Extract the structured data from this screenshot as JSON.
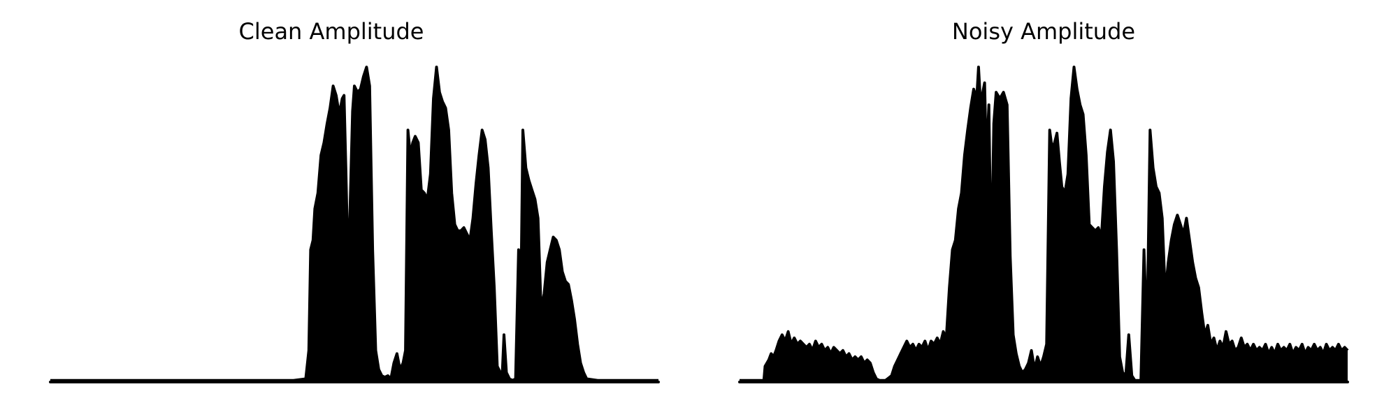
{
  "figure": {
    "background": "#ffffff",
    "mark_color": "#000000"
  },
  "chart_data": [
    {
      "type": "area",
      "title": "Clean Amplitude",
      "xlabel": "",
      "ylabel": "",
      "axes_visible": false,
      "grid": false,
      "xlim": [
        0,
        1
      ],
      "ylim": [
        0,
        1
      ],
      "envelope": [
        [
          0.0,
          0.005
        ],
        [
          0.1,
          0.005
        ],
        [
          0.2,
          0.005
        ],
        [
          0.3,
          0.005
        ],
        [
          0.4,
          0.005
        ],
        [
          0.42,
          0.01
        ],
        [
          0.425,
          0.1
        ],
        [
          0.428,
          0.42
        ],
        [
          0.432,
          0.45
        ],
        [
          0.435,
          0.55
        ],
        [
          0.44,
          0.6
        ],
        [
          0.445,
          0.72
        ],
        [
          0.45,
          0.76
        ],
        [
          0.455,
          0.82
        ],
        [
          0.46,
          0.87
        ],
        [
          0.465,
          0.94
        ],
        [
          0.47,
          0.91
        ],
        [
          0.475,
          0.85
        ],
        [
          0.48,
          0.9
        ],
        [
          0.483,
          0.91
        ],
        [
          0.486,
          0.68
        ],
        [
          0.49,
          0.33
        ],
        [
          0.493,
          0.56
        ],
        [
          0.497,
          0.86
        ],
        [
          0.5,
          0.94
        ],
        [
          0.505,
          0.92
        ],
        [
          0.51,
          0.93
        ],
        [
          0.515,
          0.97
        ],
        [
          0.52,
          1.0
        ],
        [
          0.525,
          0.94
        ],
        [
          0.53,
          0.42
        ],
        [
          0.535,
          0.1
        ],
        [
          0.54,
          0.04
        ],
        [
          0.545,
          0.02
        ],
        [
          0.55,
          0.015
        ],
        [
          0.555,
          0.02
        ],
        [
          0.56,
          0.01
        ],
        [
          0.565,
          0.06
        ],
        [
          0.57,
          0.09
        ],
        [
          0.575,
          0.04
        ],
        [
          0.58,
          0.06
        ],
        [
          0.584,
          0.1
        ],
        [
          0.588,
          0.8
        ],
        [
          0.592,
          0.72
        ],
        [
          0.596,
          0.76
        ],
        [
          0.6,
          0.78
        ],
        [
          0.605,
          0.76
        ],
        [
          0.61,
          0.61
        ],
        [
          0.615,
          0.6
        ],
        [
          0.62,
          0.58
        ],
        [
          0.625,
          0.66
        ],
        [
          0.63,
          0.9
        ],
        [
          0.635,
          1.0
        ],
        [
          0.64,
          0.92
        ],
        [
          0.645,
          0.89
        ],
        [
          0.65,
          0.87
        ],
        [
          0.655,
          0.8
        ],
        [
          0.66,
          0.6
        ],
        [
          0.665,
          0.5
        ],
        [
          0.67,
          0.48
        ],
        [
          0.675,
          0.48
        ],
        [
          0.68,
          0.49
        ],
        [
          0.685,
          0.47
        ],
        [
          0.69,
          0.45
        ],
        [
          0.695,
          0.52
        ],
        [
          0.7,
          0.63
        ],
        [
          0.705,
          0.72
        ],
        [
          0.71,
          0.8
        ],
        [
          0.715,
          0.77
        ],
        [
          0.72,
          0.68
        ],
        [
          0.725,
          0.48
        ],
        [
          0.73,
          0.3
        ],
        [
          0.735,
          0.05
        ],
        [
          0.74,
          0.03
        ],
        [
          0.743,
          0.02
        ],
        [
          0.746,
          0.15
        ],
        [
          0.75,
          0.03
        ],
        [
          0.755,
          0.01
        ],
        [
          0.76,
          0.005
        ],
        [
          0.765,
          0.01
        ],
        [
          0.77,
          0.42
        ],
        [
          0.773,
          0.14
        ],
        [
          0.777,
          0.8
        ],
        [
          0.782,
          0.68
        ],
        [
          0.787,
          0.64
        ],
        [
          0.792,
          0.61
        ],
        [
          0.797,
          0.58
        ],
        [
          0.802,
          0.52
        ],
        [
          0.807,
          0.23
        ],
        [
          0.812,
          0.28
        ],
        [
          0.817,
          0.38
        ],
        [
          0.822,
          0.42
        ],
        [
          0.827,
          0.46
        ],
        [
          0.832,
          0.45
        ],
        [
          0.837,
          0.42
        ],
        [
          0.842,
          0.35
        ],
        [
          0.847,
          0.32
        ],
        [
          0.852,
          0.31
        ],
        [
          0.857,
          0.26
        ],
        [
          0.862,
          0.2
        ],
        [
          0.867,
          0.12
        ],
        [
          0.872,
          0.06
        ],
        [
          0.877,
          0.03
        ],
        [
          0.882,
          0.01
        ],
        [
          0.9,
          0.005
        ],
        [
          0.95,
          0.005
        ],
        [
          1.0,
          0.005
        ]
      ]
    },
    {
      "type": "area",
      "title": "Noisy Amplitude",
      "xlabel": "",
      "ylabel": "",
      "axes_visible": false,
      "grid": false,
      "xlim": [
        0,
        1
      ],
      "ylim": [
        0,
        1
      ],
      "envelope": [
        [
          0.0,
          0.005
        ],
        [
          0.04,
          0.005
        ],
        [
          0.042,
          0.05
        ],
        [
          0.048,
          0.07
        ],
        [
          0.052,
          0.09
        ],
        [
          0.056,
          0.08
        ],
        [
          0.06,
          0.1
        ],
        [
          0.065,
          0.13
        ],
        [
          0.07,
          0.15
        ],
        [
          0.075,
          0.13
        ],
        [
          0.08,
          0.16
        ],
        [
          0.085,
          0.12
        ],
        [
          0.09,
          0.14
        ],
        [
          0.095,
          0.12
        ],
        [
          0.1,
          0.13
        ],
        [
          0.105,
          0.12
        ],
        [
          0.11,
          0.11
        ],
        [
          0.115,
          0.12
        ],
        [
          0.12,
          0.1
        ],
        [
          0.125,
          0.13
        ],
        [
          0.13,
          0.11
        ],
        [
          0.135,
          0.12
        ],
        [
          0.14,
          0.1
        ],
        [
          0.145,
          0.11
        ],
        [
          0.15,
          0.09
        ],
        [
          0.155,
          0.11
        ],
        [
          0.16,
          0.1
        ],
        [
          0.165,
          0.09
        ],
        [
          0.17,
          0.1
        ],
        [
          0.175,
          0.08
        ],
        [
          0.18,
          0.09
        ],
        [
          0.185,
          0.07
        ],
        [
          0.19,
          0.08
        ],
        [
          0.195,
          0.07
        ],
        [
          0.2,
          0.08
        ],
        [
          0.205,
          0.06
        ],
        [
          0.21,
          0.07
        ],
        [
          0.215,
          0.06
        ],
        [
          0.22,
          0.03
        ],
        [
          0.225,
          0.01
        ],
        [
          0.23,
          0.005
        ],
        [
          0.24,
          0.005
        ],
        [
          0.25,
          0.02
        ],
        [
          0.255,
          0.05
        ],
        [
          0.26,
          0.07
        ],
        [
          0.265,
          0.09
        ],
        [
          0.27,
          0.11
        ],
        [
          0.275,
          0.13
        ],
        [
          0.28,
          0.11
        ],
        [
          0.285,
          0.12
        ],
        [
          0.29,
          0.1
        ],
        [
          0.295,
          0.12
        ],
        [
          0.3,
          0.11
        ],
        [
          0.305,
          0.13
        ],
        [
          0.31,
          0.1
        ],
        [
          0.315,
          0.13
        ],
        [
          0.32,
          0.12
        ],
        [
          0.325,
          0.14
        ],
        [
          0.33,
          0.12
        ],
        [
          0.335,
          0.16
        ],
        [
          0.34,
          0.14
        ],
        [
          0.345,
          0.3
        ],
        [
          0.35,
          0.42
        ],
        [
          0.355,
          0.45
        ],
        [
          0.36,
          0.55
        ],
        [
          0.365,
          0.6
        ],
        [
          0.37,
          0.72
        ],
        [
          0.375,
          0.8
        ],
        [
          0.38,
          0.87
        ],
        [
          0.385,
          0.93
        ],
        [
          0.39,
          0.9
        ],
        [
          0.393,
          1.0
        ],
        [
          0.397,
          0.86
        ],
        [
          0.4,
          0.92
        ],
        [
          0.403,
          0.95
        ],
        [
          0.406,
          0.7
        ],
        [
          0.41,
          0.88
        ],
        [
          0.414,
          0.34
        ],
        [
          0.418,
          0.82
        ],
        [
          0.422,
          0.92
        ],
        [
          0.428,
          0.9
        ],
        [
          0.434,
          0.92
        ],
        [
          0.44,
          0.88
        ],
        [
          0.445,
          0.4
        ],
        [
          0.45,
          0.15
        ],
        [
          0.455,
          0.09
        ],
        [
          0.46,
          0.05
        ],
        [
          0.465,
          0.03
        ],
        [
          0.47,
          0.04
        ],
        [
          0.475,
          0.06
        ],
        [
          0.48,
          0.1
        ],
        [
          0.485,
          0.04
        ],
        [
          0.49,
          0.08
        ],
        [
          0.495,
          0.05
        ],
        [
          0.5,
          0.08
        ],
        [
          0.505,
          0.12
        ],
        [
          0.51,
          0.8
        ],
        [
          0.514,
          0.74
        ],
        [
          0.518,
          0.76
        ],
        [
          0.522,
          0.79
        ],
        [
          0.526,
          0.7
        ],
        [
          0.53,
          0.62
        ],
        [
          0.535,
          0.6
        ],
        [
          0.54,
          0.66
        ],
        [
          0.545,
          0.9
        ],
        [
          0.55,
          1.0
        ],
        [
          0.555,
          0.93
        ],
        [
          0.56,
          0.88
        ],
        [
          0.565,
          0.85
        ],
        [
          0.57,
          0.72
        ],
        [
          0.575,
          0.5
        ],
        [
          0.58,
          0.49
        ],
        [
          0.585,
          0.48
        ],
        [
          0.59,
          0.49
        ],
        [
          0.595,
          0.46
        ],
        [
          0.6,
          0.62
        ],
        [
          0.605,
          0.73
        ],
        [
          0.61,
          0.8
        ],
        [
          0.615,
          0.7
        ],
        [
          0.62,
          0.42
        ],
        [
          0.625,
          0.08
        ],
        [
          0.63,
          0.03
        ],
        [
          0.635,
          0.02
        ],
        [
          0.64,
          0.15
        ],
        [
          0.645,
          0.02
        ],
        [
          0.65,
          0.005
        ],
        [
          0.66,
          0.005
        ],
        [
          0.665,
          0.42
        ],
        [
          0.67,
          0.14
        ],
        [
          0.675,
          0.8
        ],
        [
          0.68,
          0.68
        ],
        [
          0.685,
          0.62
        ],
        [
          0.69,
          0.6
        ],
        [
          0.695,
          0.52
        ],
        [
          0.7,
          0.28
        ],
        [
          0.705,
          0.38
        ],
        [
          0.71,
          0.45
        ],
        [
          0.715,
          0.5
        ],
        [
          0.72,
          0.53
        ],
        [
          0.725,
          0.5
        ],
        [
          0.73,
          0.47
        ],
        [
          0.735,
          0.52
        ],
        [
          0.74,
          0.45
        ],
        [
          0.745,
          0.38
        ],
        [
          0.75,
          0.33
        ],
        [
          0.755,
          0.3
        ],
        [
          0.76,
          0.22
        ],
        [
          0.765,
          0.15
        ],
        [
          0.77,
          0.18
        ],
        [
          0.775,
          0.12
        ],
        [
          0.78,
          0.14
        ],
        [
          0.785,
          0.1
        ],
        [
          0.79,
          0.13
        ],
        [
          0.795,
          0.11
        ],
        [
          0.8,
          0.16
        ],
        [
          0.805,
          0.12
        ],
        [
          0.81,
          0.13
        ],
        [
          0.815,
          0.1
        ],
        [
          0.82,
          0.11
        ],
        [
          0.825,
          0.14
        ],
        [
          0.83,
          0.11
        ],
        [
          0.835,
          0.12
        ],
        [
          0.84,
          0.1
        ],
        [
          0.845,
          0.12
        ],
        [
          0.85,
          0.1
        ],
        [
          0.855,
          0.11
        ],
        [
          0.86,
          0.1
        ],
        [
          0.865,
          0.12
        ],
        [
          0.87,
          0.09
        ],
        [
          0.875,
          0.11
        ],
        [
          0.88,
          0.09
        ],
        [
          0.885,
          0.12
        ],
        [
          0.89,
          0.1
        ],
        [
          0.895,
          0.11
        ],
        [
          0.9,
          0.1
        ],
        [
          0.905,
          0.12
        ],
        [
          0.91,
          0.09
        ],
        [
          0.915,
          0.11
        ],
        [
          0.92,
          0.1
        ],
        [
          0.925,
          0.12
        ],
        [
          0.93,
          0.09
        ],
        [
          0.935,
          0.11
        ],
        [
          0.94,
          0.1
        ],
        [
          0.945,
          0.12
        ],
        [
          0.95,
          0.1
        ],
        [
          0.955,
          0.11
        ],
        [
          0.96,
          0.09
        ],
        [
          0.965,
          0.12
        ],
        [
          0.97,
          0.1
        ],
        [
          0.975,
          0.11
        ],
        [
          0.98,
          0.1
        ],
        [
          0.985,
          0.12
        ],
        [
          0.99,
          0.1
        ],
        [
          0.995,
          0.11
        ],
        [
          1.0,
          0.1
        ]
      ]
    }
  ]
}
